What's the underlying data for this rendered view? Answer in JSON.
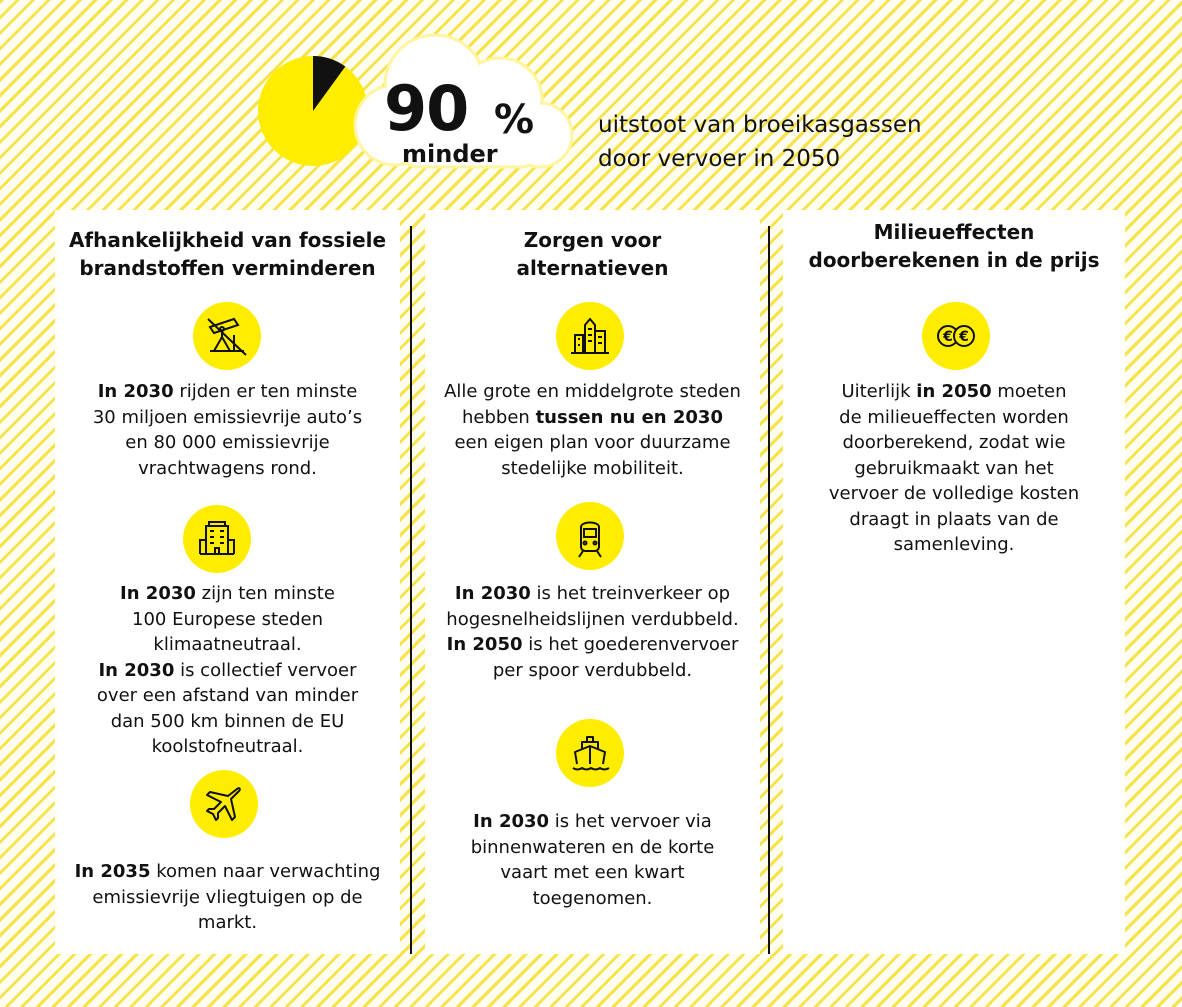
{
  "header": {
    "number": "90",
    "unit": "%",
    "sub": "minder",
    "line1": "uitstoot van broeikasgassen",
    "line2": "door vervoer in 2050",
    "pie_fraction_dark": 0.1
  },
  "colors": {
    "accent": "#ffed00",
    "dark": "#111111"
  },
  "columns": [
    {
      "title1": "Afhankelijkheid van fossiele",
      "title2": "brandstoffen verminderen",
      "blocks": [
        {
          "icon": "oil-pump-crossed-icon",
          "lines": [
            [
              "In 2030",
              " rijden er ten minste"
            ],
            [
              "",
              "30 miljoen emissievrije auto’s"
            ],
            [
              "",
              "en 80 000 emissievrije"
            ],
            [
              "",
              "vrachtwagens rond."
            ]
          ]
        },
        {
          "icon": "city-building-icon",
          "lines": [
            [
              "In 2030",
              " zijn ten minste"
            ],
            [
              "",
              "100 Europese steden"
            ],
            [
              "",
              "klimaatneutraal."
            ],
            [
              "In 2030",
              " is collectief vervoer"
            ],
            [
              "",
              "over een afstand van minder"
            ],
            [
              "",
              "dan 500 km binnen de EU"
            ],
            [
              "",
              "koolstofneutraal."
            ]
          ]
        },
        {
          "icon": "airplane-icon",
          "lines": [
            [
              "In 2035",
              " komen naar verwachting"
            ],
            [
              "",
              "emissievrije vliegtuigen op de"
            ],
            [
              "",
              "markt."
            ]
          ]
        }
      ]
    },
    {
      "title1": "Zorgen voor",
      "title2": "alternatieven",
      "blocks": [
        {
          "icon": "skyline-icon",
          "lines": [
            [
              "",
              "Alle grote en middelgrote steden"
            ],
            [
              "",
              "hebben ",
              "tussen nu en 2030"
            ],
            [
              "",
              "een eigen plan voor duurzame"
            ],
            [
              "",
              "stedelijke mobiliteit."
            ]
          ]
        },
        {
          "icon": "train-icon",
          "lines": [
            [
              "In 2030",
              " is het treinverkeer op"
            ],
            [
              "",
              "hogesnelheidslijnen verdubbeld."
            ],
            [
              "In 2050",
              " is het goederenvervoer"
            ],
            [
              "",
              "per spoor verdubbeld."
            ]
          ]
        },
        {
          "icon": "ship-icon",
          "lines": [
            [
              "In 2030",
              " is het vervoer via"
            ],
            [
              "",
              "binnenwateren en de korte"
            ],
            [
              "",
              "vaart met een kwart"
            ],
            [
              "",
              "toegenomen."
            ]
          ]
        }
      ]
    },
    {
      "title1": "Milieueffecten",
      "title2": "doorberekenen in de prijs",
      "blocks": [
        {
          "icon": "euro-coins-icon",
          "lines": [
            [
              "",
              "Uiterlijk ",
              "in 2050",
              " moeten"
            ],
            [
              "",
              "de milieueffecten worden"
            ],
            [
              "",
              "doorberekend, zodat wie"
            ],
            [
              "",
              "gebruikmaakt van het"
            ],
            [
              "",
              "vervoer de volledige kosten"
            ],
            [
              "",
              "draagt in plaats van de"
            ],
            [
              "",
              "samenleving."
            ]
          ]
        }
      ]
    }
  ]
}
